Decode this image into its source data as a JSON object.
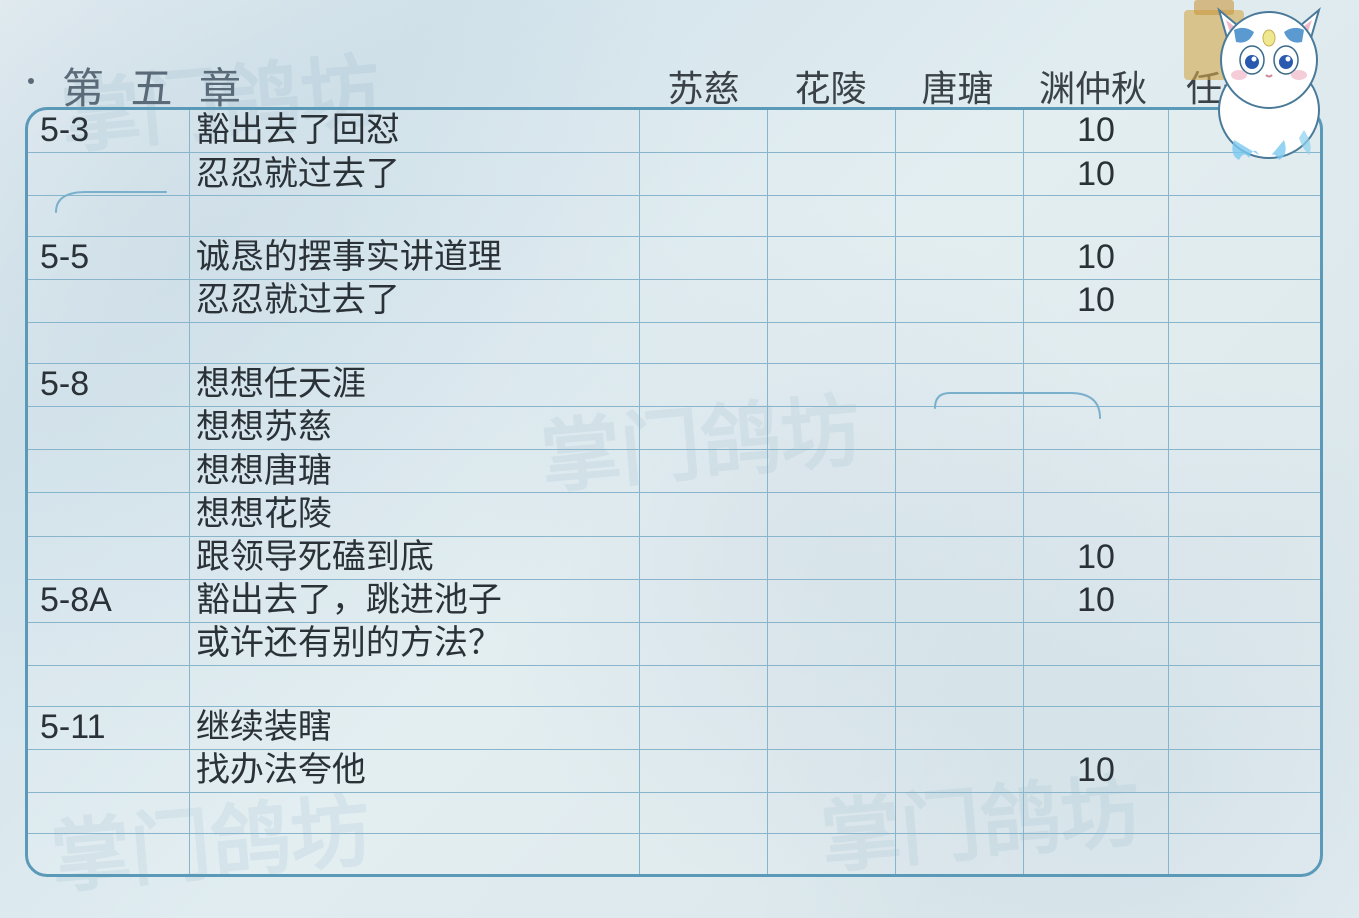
{
  "chapter_title": "第 五 章",
  "columns": {
    "suci": "苏慈",
    "hualing": "花陵",
    "tangtang": "唐瑭",
    "yuanzhongqiu": "渊仲秋",
    "rentianya": "任天涯"
  },
  "rows": [
    {
      "section": "5-3",
      "desc": "豁出去了回怼",
      "suci": "",
      "hualing": "",
      "tangtang": "",
      "yuanzhongqiu": "10",
      "rentianya": ""
    },
    {
      "section": "",
      "desc": "忍忍就过去了",
      "suci": "",
      "hualing": "",
      "tangtang": "",
      "yuanzhongqiu": "10",
      "rentianya": ""
    },
    {
      "section": "",
      "desc": "",
      "suci": "",
      "hualing": "",
      "tangtang": "",
      "yuanzhongqiu": "",
      "rentianya": ""
    },
    {
      "section": "5-5",
      "desc": "诚恳的摆事实讲道理",
      "suci": "",
      "hualing": "",
      "tangtang": "",
      "yuanzhongqiu": "10",
      "rentianya": ""
    },
    {
      "section": "",
      "desc": "忍忍就过去了",
      "suci": "",
      "hualing": "",
      "tangtang": "",
      "yuanzhongqiu": "10",
      "rentianya": ""
    },
    {
      "section": "",
      "desc": "",
      "suci": "",
      "hualing": "",
      "tangtang": "",
      "yuanzhongqiu": "",
      "rentianya": ""
    },
    {
      "section": "5-8",
      "desc": "想想任天涯",
      "suci": "",
      "hualing": "",
      "tangtang": "",
      "yuanzhongqiu": "",
      "rentianya": ""
    },
    {
      "section": "",
      "desc": "想想苏慈",
      "suci": "",
      "hualing": "",
      "tangtang": "",
      "yuanzhongqiu": "",
      "rentianya": ""
    },
    {
      "section": "",
      "desc": "想想唐瑭",
      "suci": "",
      "hualing": "",
      "tangtang": "",
      "yuanzhongqiu": "",
      "rentianya": ""
    },
    {
      "section": "",
      "desc": "想想花陵",
      "suci": "",
      "hualing": "",
      "tangtang": "",
      "yuanzhongqiu": "",
      "rentianya": ""
    },
    {
      "section": "",
      "desc": "跟领导死磕到底",
      "suci": "",
      "hualing": "",
      "tangtang": "",
      "yuanzhongqiu": "10",
      "rentianya": ""
    },
    {
      "section": "5-8A",
      "desc": "豁出去了，跳进池子",
      "suci": "",
      "hualing": "",
      "tangtang": "",
      "yuanzhongqiu": "10",
      "rentianya": ""
    },
    {
      "section": "",
      "desc": "或许还有别的方法？",
      "suci": "",
      "hualing": "",
      "tangtang": "",
      "yuanzhongqiu": "",
      "rentianya": ""
    },
    {
      "section": "",
      "desc": "",
      "suci": "",
      "hualing": "",
      "tangtang": "",
      "yuanzhongqiu": "",
      "rentianya": ""
    },
    {
      "section": "5-11",
      "desc": "继续装瞎",
      "suci": "",
      "hualing": "",
      "tangtang": "",
      "yuanzhongqiu": "",
      "rentianya": ""
    },
    {
      "section": "",
      "desc": "找办法夸他",
      "suci": "",
      "hualing": "",
      "tangtang": "",
      "yuanzhongqiu": "10",
      "rentianya": ""
    },
    {
      "section": "",
      "desc": "",
      "suci": "",
      "hualing": "",
      "tangtang": "",
      "yuanzhongqiu": "",
      "rentianya": ""
    },
    {
      "section": "",
      "desc": "",
      "suci": "",
      "hualing": "",
      "tangtang": "",
      "yuanzhongqiu": "",
      "rentianya": ""
    }
  ],
  "styling": {
    "border_color": "#5a9ab8",
    "grid_color": "#88b4cc",
    "text_color": "#2a3238",
    "title_color": "#5a6a78",
    "background_gradient": [
      "#e8f0f4",
      "#d4e4ec",
      "#e0ecf0"
    ],
    "border_radius": 22,
    "font_size_title": 42,
    "font_size_header": 36,
    "font_size_cell": 34,
    "col_widths": {
      "section": 160,
      "desc": 446,
      "char": 127,
      "char4": 144,
      "char5": 150
    }
  },
  "watermark_text": "掌门鸽坊"
}
